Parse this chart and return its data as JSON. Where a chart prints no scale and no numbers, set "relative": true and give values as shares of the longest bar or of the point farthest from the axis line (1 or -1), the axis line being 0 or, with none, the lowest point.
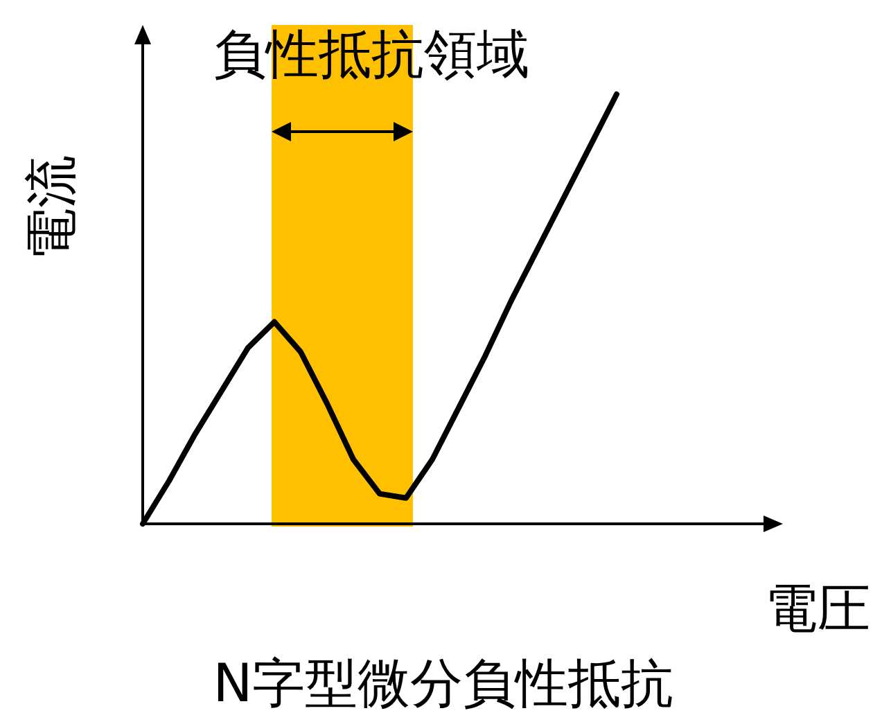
{
  "chart_data": {
    "type": "line",
    "title": "N字型微分負性抵抗",
    "xlabel": "電圧",
    "ylabel": "電流",
    "relative": true,
    "color": "#000000",
    "categories": [
      null,
      null,
      null,
      null,
      null,
      null,
      null,
      null,
      null,
      null,
      null,
      null,
      null,
      null,
      null,
      null,
      null,
      null,
      null
    ],
    "values": [
      0,
      0.1,
      0.21,
      0.31,
      0.41,
      0.47,
      0.4,
      0.28,
      0.15,
      0.07,
      0.06,
      0.15,
      0.27,
      0.39,
      0.52,
      0.64,
      0.76,
      0.88,
      1.0
    ],
    "annotations": [
      "負性抵抗領域"
    ]
  }
}
